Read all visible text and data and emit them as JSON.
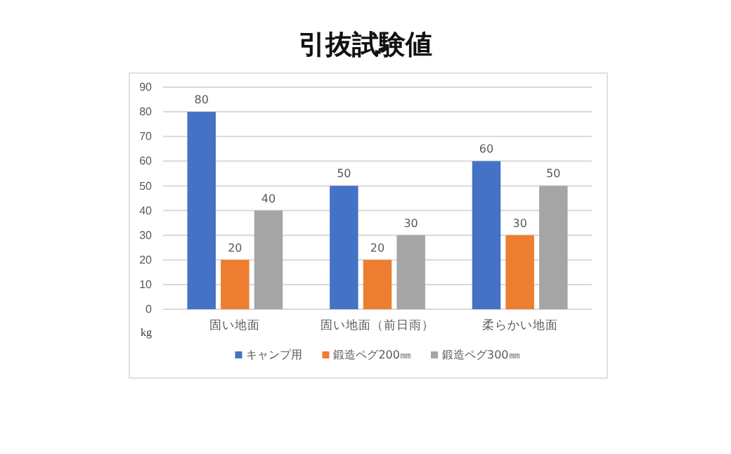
{
  "chart_data": {
    "type": "bar",
    "title": "引抜試験値",
    "ylabel": "kg",
    "categories": [
      "固い地面",
      "固い地面（前日雨）",
      "柔らかい地面"
    ],
    "series": [
      {
        "name": "キャンプ用",
        "color": "#4472c4",
        "values": [
          80,
          50,
          60
        ]
      },
      {
        "name": "鍛造ペグ200㎜",
        "color": "#ed7d31",
        "values": [
          20,
          20,
          30
        ]
      },
      {
        "name": "鍛造ペグ300㎜",
        "color": "#a5a5a5",
        "values": [
          40,
          30,
          50
        ]
      }
    ],
    "ylim": [
      0,
      90
    ],
    "yticks": [
      0,
      10,
      20,
      30,
      40,
      50,
      60,
      70,
      80,
      90
    ],
    "grid": "y",
    "legend": "bottom",
    "data_labels": true
  }
}
